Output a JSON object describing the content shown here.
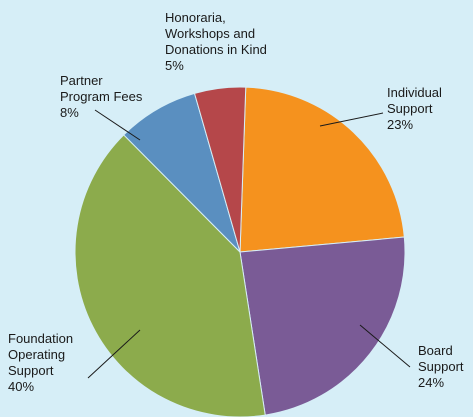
{
  "chart_data": {
    "type": "pie",
    "title": "",
    "start_angle_deg": 2,
    "direction": "clockwise",
    "slices": [
      {
        "name": "Individual Support",
        "value": 23,
        "color": "#f5921e",
        "label_lines": [
          "Individual",
          "Support",
          "23%"
        ]
      },
      {
        "name": "Board Support",
        "value": 24,
        "color": "#7a5b96",
        "label_lines": [
          "Board",
          "Support",
          "24%"
        ]
      },
      {
        "name": "Foundation Operating Support",
        "value": 40,
        "color": "#8cab4c",
        "label_lines": [
          "Foundation",
          "Operating",
          "Support",
          "40%"
        ]
      },
      {
        "name": "Partner Program Fees",
        "value": 8,
        "color": "#5a8fc0",
        "label_lines": [
          "Partner",
          "Program Fees",
          "8%"
        ]
      },
      {
        "name": "Honoraria, Workshops and Donations in Kind",
        "value": 5,
        "color": "#b5474a",
        "label_lines": [
          "Honoraria,",
          "Workshops and",
          "Donations in Kind",
          "5%"
        ]
      }
    ]
  }
}
